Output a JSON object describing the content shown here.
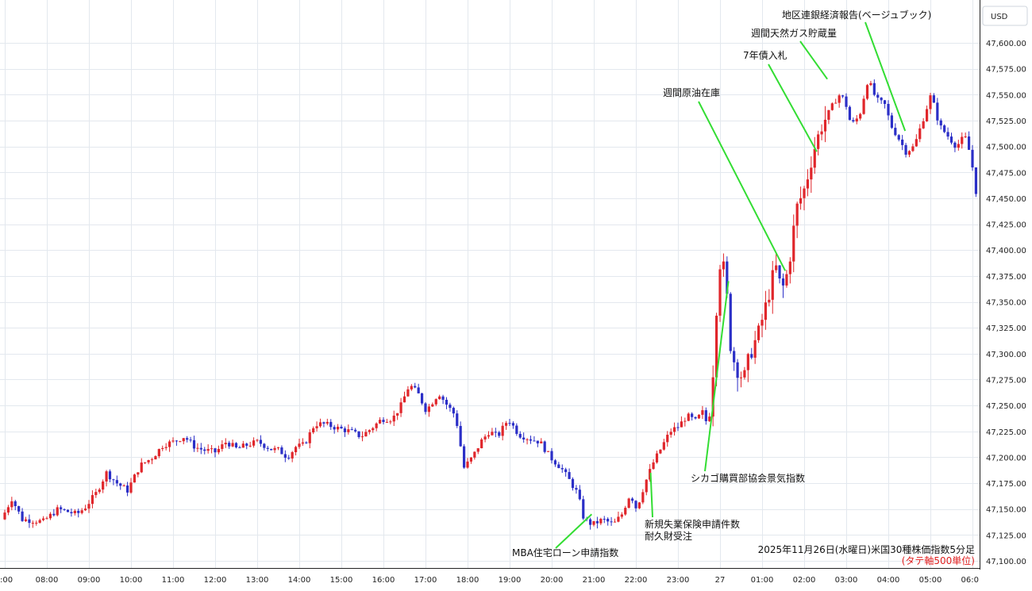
{
  "chart_data": {
    "type": "candlestick",
    "title": "2025年11月26日(水曜日)米国30種株価指数5分足",
    "subtitle": "(タテ軸500単位)",
    "currency": "USD",
    "ylim": [
      47087.5,
      47625
    ],
    "yticks": [
      47100,
      47125,
      47150,
      47175,
      47200,
      47225,
      47250,
      47275,
      47300,
      47325,
      47350,
      47375,
      47400,
      47425,
      47450,
      47475,
      47500,
      47525,
      47550,
      47575,
      47600
    ],
    "ytick_labels": [
      "47,100.00",
      "47,125.00",
      "47,150.00",
      "47,175.00",
      "47,200.00",
      "47,225.00",
      "47,250.00",
      "47,275.00",
      "47,300.00",
      "47,325.00",
      "47,350.00",
      "47,375.00",
      "47,400.00",
      "47,425.00",
      "47,450.00",
      "47,475.00",
      "47,500.00",
      "47,525.00",
      "47,550.00",
      "47,575.00",
      "47,600.00"
    ],
    "xlim": [
      7.0,
      30.25
    ],
    "xticks": [
      7,
      8,
      9,
      10,
      11,
      12,
      13,
      14,
      15,
      16,
      17,
      18,
      19,
      20,
      21,
      22,
      23,
      24,
      25,
      26,
      27,
      28,
      29,
      30
    ],
    "xtick_labels": [
      ":00",
      "08:00",
      "09:00",
      "10:00",
      "11:00",
      "12:00",
      "13:00",
      "14:00",
      "15:00",
      "16:00",
      "17:00",
      "18:00",
      "19:00",
      "20:00",
      "21:00",
      "22:00",
      "23:00",
      "27",
      "01:00",
      "02:00",
      "03:00",
      "04:00",
      "05:00",
      "06:0"
    ],
    "up_color": "#e0262b",
    "down_color": "#2b2fc7",
    "annotation_color": "#33dd33",
    "path_points": [
      [
        7.0,
        47140
      ],
      [
        7.25,
        47160
      ],
      [
        7.5,
        47140
      ],
      [
        8.0,
        47138
      ],
      [
        8.35,
        47150
      ],
      [
        8.8,
        47145
      ],
      [
        9.0,
        47152
      ],
      [
        9.25,
        47165
      ],
      [
        9.5,
        47185
      ],
      [
        9.75,
        47175
      ],
      [
        10.0,
        47168
      ],
      [
        10.3,
        47192
      ],
      [
        10.6,
        47200
      ],
      [
        10.85,
        47212
      ],
      [
        11.1,
        47215
      ],
      [
        11.35,
        47220
      ],
      [
        11.6,
        47210
      ],
      [
        11.8,
        47207
      ],
      [
        12.1,
        47205
      ],
      [
        12.35,
        47215
      ],
      [
        12.6,
        47208
      ],
      [
        12.85,
        47212
      ],
      [
        13.1,
        47215
      ],
      [
        13.4,
        47208
      ],
      [
        13.6,
        47207
      ],
      [
        13.8,
        47200
      ],
      [
        14.0,
        47210
      ],
      [
        14.2,
        47212
      ],
      [
        14.45,
        47232
      ],
      [
        14.7,
        47232
      ],
      [
        15.0,
        47228
      ],
      [
        15.3,
        47225
      ],
      [
        15.55,
        47220
      ],
      [
        15.8,
        47228
      ],
      [
        16.05,
        47237
      ],
      [
        16.3,
        47237
      ],
      [
        16.5,
        47250
      ],
      [
        16.7,
        47270
      ],
      [
        16.9,
        47262
      ],
      [
        17.1,
        47245
      ],
      [
        17.4,
        47262
      ],
      [
        17.6,
        47250
      ],
      [
        17.8,
        47240
      ],
      [
        18.0,
        47190
      ],
      [
        18.2,
        47200
      ],
      [
        18.4,
        47215
      ],
      [
        18.6,
        47225
      ],
      [
        18.8,
        47220
      ],
      [
        19.05,
        47237
      ],
      [
        19.3,
        47222
      ],
      [
        19.55,
        47218
      ],
      [
        19.8,
        47215
      ],
      [
        20.05,
        47200
      ],
      [
        20.3,
        47190
      ],
      [
        20.5,
        47178
      ],
      [
        20.7,
        47165
      ],
      [
        20.85,
        47140
      ],
      [
        21.05,
        47135
      ],
      [
        21.3,
        47140
      ],
      [
        21.55,
        47135
      ],
      [
        21.75,
        47145
      ],
      [
        21.95,
        47165
      ],
      [
        22.1,
        47150
      ],
      [
        22.3,
        47175
      ],
      [
        22.5,
        47195
      ],
      [
        22.7,
        47210
      ],
      [
        22.9,
        47225
      ],
      [
        23.1,
        47230
      ],
      [
        23.3,
        47240
      ],
      [
        23.5,
        47235
      ],
      [
        23.7,
        47245
      ],
      [
        23.8,
        47225
      ],
      [
        23.95,
        47300
      ],
      [
        24.05,
        47390
      ],
      [
        24.2,
        47380
      ],
      [
        24.35,
        47300
      ],
      [
        24.5,
        47285
      ],
      [
        24.65,
        47275
      ],
      [
        24.8,
        47300
      ],
      [
        25.0,
        47320
      ],
      [
        25.2,
        47350
      ],
      [
        25.4,
        47385
      ],
      [
        25.55,
        47360
      ],
      [
        25.7,
        47380
      ],
      [
        25.9,
        47440
      ],
      [
        26.1,
        47460
      ],
      [
        26.3,
        47495
      ],
      [
        26.5,
        47520
      ],
      [
        26.7,
        47535
      ],
      [
        26.9,
        47550
      ],
      [
        27.05,
        47545
      ],
      [
        27.2,
        47520
      ],
      [
        27.4,
        47530
      ],
      [
        27.6,
        47565
      ],
      [
        27.8,
        47545
      ],
      [
        28.0,
        47540
      ],
      [
        28.15,
        47520
      ],
      [
        28.3,
        47510
      ],
      [
        28.5,
        47495
      ],
      [
        28.7,
        47500
      ],
      [
        28.9,
        47525
      ],
      [
        29.1,
        47550
      ],
      [
        29.3,
        47520
      ],
      [
        29.5,
        47510
      ],
      [
        29.7,
        47500
      ],
      [
        29.9,
        47510
      ],
      [
        30.05,
        47490
      ],
      [
        30.15,
        47460
      ],
      [
        30.25,
        47440
      ]
    ],
    "annotations": [
      {
        "label": "MBA住宅ローン申請指数",
        "x": 20.95,
        "y": 47145
      },
      {
        "label": "新規失業保険申請件数",
        "x": 22.35,
        "y": 47185
      },
      {
        "label": "耐久財受注",
        "x": 22.35,
        "y": 47185
      },
      {
        "label": "シカゴ購買部協会景気指数",
        "x": 24.2,
        "y": 47370
      },
      {
        "label": "週間原油在庫",
        "x": 25.55,
        "y": 47380
      },
      {
        "label": "7年債入札",
        "x": 26.3,
        "y": 47495
      },
      {
        "label": "週間天然ガス貯蔵量",
        "x": 26.55,
        "y": 47565
      },
      {
        "label": "地区連銀経済報告(ベージュブック)",
        "x": 28.4,
        "y": 47515
      }
    ]
  }
}
